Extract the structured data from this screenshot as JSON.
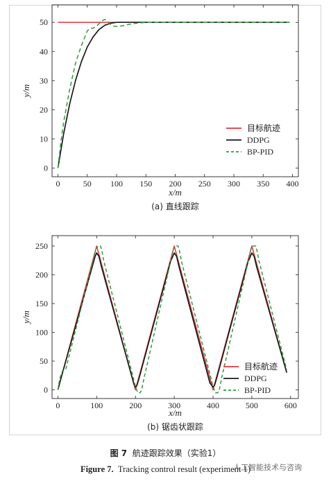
{
  "chart_data": [
    {
      "type": "line",
      "subtitle": "(a) 直线跟踪",
      "xlabel": "x/m",
      "ylabel": "y/m",
      "xlim": [
        -10,
        410
      ],
      "ylim": [
        -3,
        56
      ],
      "xticks": [
        "0",
        "50",
        "100",
        "150",
        "200",
        "250",
        "300",
        "350",
        "400"
      ],
      "yticks": [
        "0",
        "10",
        "20",
        "30",
        "40",
        "50"
      ],
      "legend_position": "right",
      "series": [
        {
          "name": "目标航迹",
          "color": "#e8323c",
          "dash": "",
          "x": [
            0,
            395
          ],
          "y": [
            50,
            50
          ]
        },
        {
          "name": "DDPG",
          "color": "#1a1a1a",
          "dash": "",
          "x": [
            0,
            10,
            20,
            30,
            40,
            50,
            60,
            70,
            80,
            90,
            100,
            120,
            150,
            200,
            300,
            395
          ],
          "y": [
            0,
            12,
            22,
            30,
            36.5,
            41.5,
            45,
            47.5,
            49,
            49.7,
            50,
            50,
            50,
            50,
            50,
            50
          ]
        },
        {
          "name": "BP-PID",
          "color": "#2e9a3a",
          "dash": "6 4",
          "x": [
            0,
            5,
            10,
            20,
            30,
            40,
            50,
            55,
            60,
            65,
            70,
            75,
            80,
            85,
            90,
            95,
            100,
            110,
            120,
            130,
            150,
            200,
            300,
            395
          ],
          "y": [
            0,
            9,
            16,
            27,
            36,
            42,
            47,
            48,
            48,
            48.5,
            49.5,
            50.5,
            51,
            50.3,
            49.2,
            48.7,
            48.6,
            48.8,
            49.3,
            49.6,
            50,
            50,
            50,
            50
          ]
        }
      ]
    },
    {
      "type": "line",
      "subtitle": "(b) 锯齿状跟踪",
      "xlabel": "x/m",
      "ylabel": "y/m",
      "xlim": [
        -15,
        620
      ],
      "ylim": [
        -15,
        268
      ],
      "xticks": [
        "0",
        "100",
        "200",
        "300",
        "400",
        "500",
        "600"
      ],
      "yticks": [
        "0",
        "50",
        "100",
        "150",
        "200",
        "250"
      ],
      "legend_position": "right",
      "series": [
        {
          "name": "目标航迹",
          "color": "#e8323c",
          "dash": "",
          "x": [
            0,
            100,
            200,
            300,
            400,
            500,
            590
          ],
          "y": [
            0,
            250,
            0,
            250,
            0,
            250,
            30
          ]
        },
        {
          "name": "DDPG",
          "color": "#1a1a1a",
          "dash": "",
          "x": [
            0,
            10,
            96,
            100,
            106,
            112,
            196,
            200,
            204,
            210,
            290,
            300,
            306,
            312,
            392,
            400,
            404,
            410,
            490,
            500,
            506,
            512,
            590
          ],
          "y": [
            0,
            25,
            232,
            238,
            232,
            215,
            10,
            5,
            8,
            22,
            222,
            238,
            232,
            215,
            12,
            5,
            8,
            22,
            222,
            238,
            232,
            215,
            30
          ]
        },
        {
          "name": "BP-PID",
          "color": "#2e9a3a",
          "dash": "5 3.5",
          "x": [
            0,
            5,
            12,
            20,
            98,
            104,
            110,
            114,
            118,
            200,
            206,
            212,
            216,
            222,
            298,
            304,
            310,
            314,
            318,
            400,
            406,
            412,
            416,
            422,
            498,
            504,
            510,
            514,
            518,
            590
          ],
          "y": [
            0,
            20,
            33,
            35,
            245,
            250,
            250,
            240,
            225,
            6,
            -5,
            -5,
            0,
            20,
            245,
            250,
            250,
            240,
            225,
            6,
            -5,
            -5,
            0,
            20,
            245,
            250,
            250,
            240,
            225,
            35
          ]
        }
      ]
    }
  ],
  "caption_cn": {
    "label": "图 7",
    "text": "航迹跟踪效果（实验1）"
  },
  "caption_en": {
    "label": "Figure 7.",
    "text": "Tracking control result (experiment 1)"
  },
  "watermark": "人工智能技术与咨询"
}
